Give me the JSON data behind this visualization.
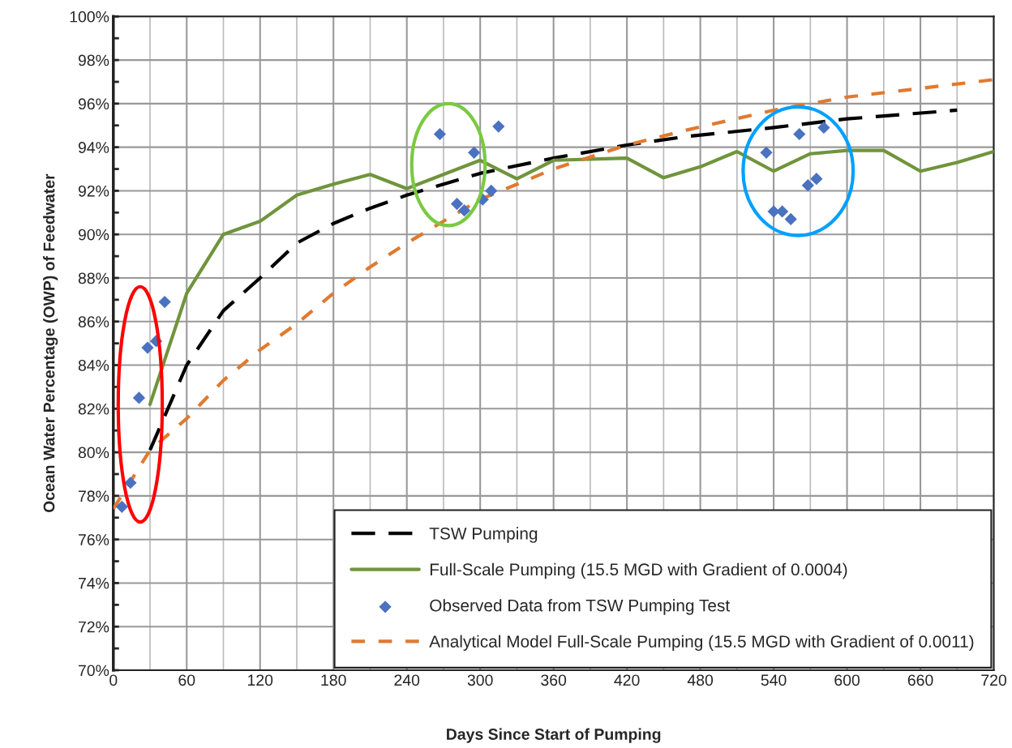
{
  "chart_data": {
    "type": "line",
    "xlabel": "Days Since Start of Pumping",
    "ylabel": "Ocean Water Percentage (OWP) of Feedwater",
    "xlim": [
      0,
      720
    ],
    "xticks": [
      0,
      60,
      120,
      180,
      240,
      300,
      360,
      420,
      480,
      540,
      600,
      660,
      720
    ],
    "ylim": [
      70,
      100
    ],
    "yticks": [
      {
        "value": 70,
        "label": "70%"
      },
      {
        "value": 72,
        "label": "72%"
      },
      {
        "value": 74,
        "label": "74%"
      },
      {
        "value": 76,
        "label": "76%"
      },
      {
        "value": 78,
        "label": "78%"
      },
      {
        "value": 80,
        "label": "80%"
      },
      {
        "value": 82,
        "label": "82%"
      },
      {
        "value": 84,
        "label": "84%"
      },
      {
        "value": 86,
        "label": "86%"
      },
      {
        "value": 88,
        "label": "88%"
      },
      {
        "value": 90,
        "label": "90%"
      },
      {
        "value": 92,
        "label": "92%"
      },
      {
        "value": 94,
        "label": "94%"
      },
      {
        "value": 96,
        "label": "96%"
      },
      {
        "value": 98,
        "label": "98%"
      },
      {
        "value": 100,
        "label": "100%"
      }
    ],
    "grid": true,
    "legend": "bottom",
    "series": [
      {
        "name": "TSW Pumping",
        "color": "#000000",
        "line_style": "dashed",
        "x": [
          30,
          60,
          90,
          120,
          150,
          180,
          210,
          240,
          300,
          360,
          420,
          470,
          540,
          600,
          690
        ],
        "values": [
          80.1,
          84.0,
          86.5,
          88.0,
          89.6,
          90.5,
          91.2,
          91.8,
          92.8,
          93.5,
          94.1,
          94.5,
          94.9,
          95.3,
          95.7
        ]
      },
      {
        "name": "Full-Scale Pumping (15.5 MGD with Gradient of 0.0004)",
        "color": "#70943c",
        "line_style": "solid",
        "x": [
          30,
          60,
          90,
          120,
          150,
          180,
          210,
          240,
          300,
          330,
          360,
          420,
          450,
          480,
          510,
          540,
          570,
          600,
          630,
          660,
          690,
          720
        ],
        "values": [
          82.2,
          87.3,
          90.0,
          90.6,
          91.8,
          92.3,
          92.75,
          92.1,
          93.4,
          92.55,
          93.4,
          93.5,
          92.6,
          93.1,
          93.8,
          92.9,
          93.7,
          93.85,
          93.85,
          92.9,
          93.3,
          93.8
        ]
      },
      {
        "name": "Observed Data from TSW Pumping Test",
        "type": "scatter",
        "marker": "diamond",
        "color": "#4a72c0",
        "x": [
          7,
          14,
          21,
          28,
          35,
          42,
          267,
          281,
          287,
          295,
          302,
          309,
          315,
          534,
          540,
          547,
          554,
          561,
          568,
          575,
          581
        ],
        "values": [
          77.5,
          78.6,
          82.5,
          84.8,
          85.1,
          86.9,
          94.6,
          91.4,
          91.1,
          93.75,
          91.6,
          92.0,
          94.95,
          93.75,
          91.05,
          91.05,
          90.7,
          94.6,
          92.25,
          92.55,
          94.9
        ]
      },
      {
        "name": "Analytical Model Full-Scale Pumping (15.5 MGD with Gradient of 0.0011)",
        "color": "#e07a30",
        "line_style": "dotted",
        "x": [
          0,
          30,
          60,
          90,
          120,
          150,
          180,
          210,
          240,
          300,
          360,
          420,
          470,
          540,
          600,
          660,
          720
        ],
        "values": [
          77.4,
          80.1,
          81.55,
          83.3,
          84.7,
          85.9,
          87.3,
          88.5,
          89.6,
          91.6,
          93.0,
          94.1,
          94.8,
          95.7,
          96.3,
          96.7,
          97.1
        ]
      }
    ]
  }
}
